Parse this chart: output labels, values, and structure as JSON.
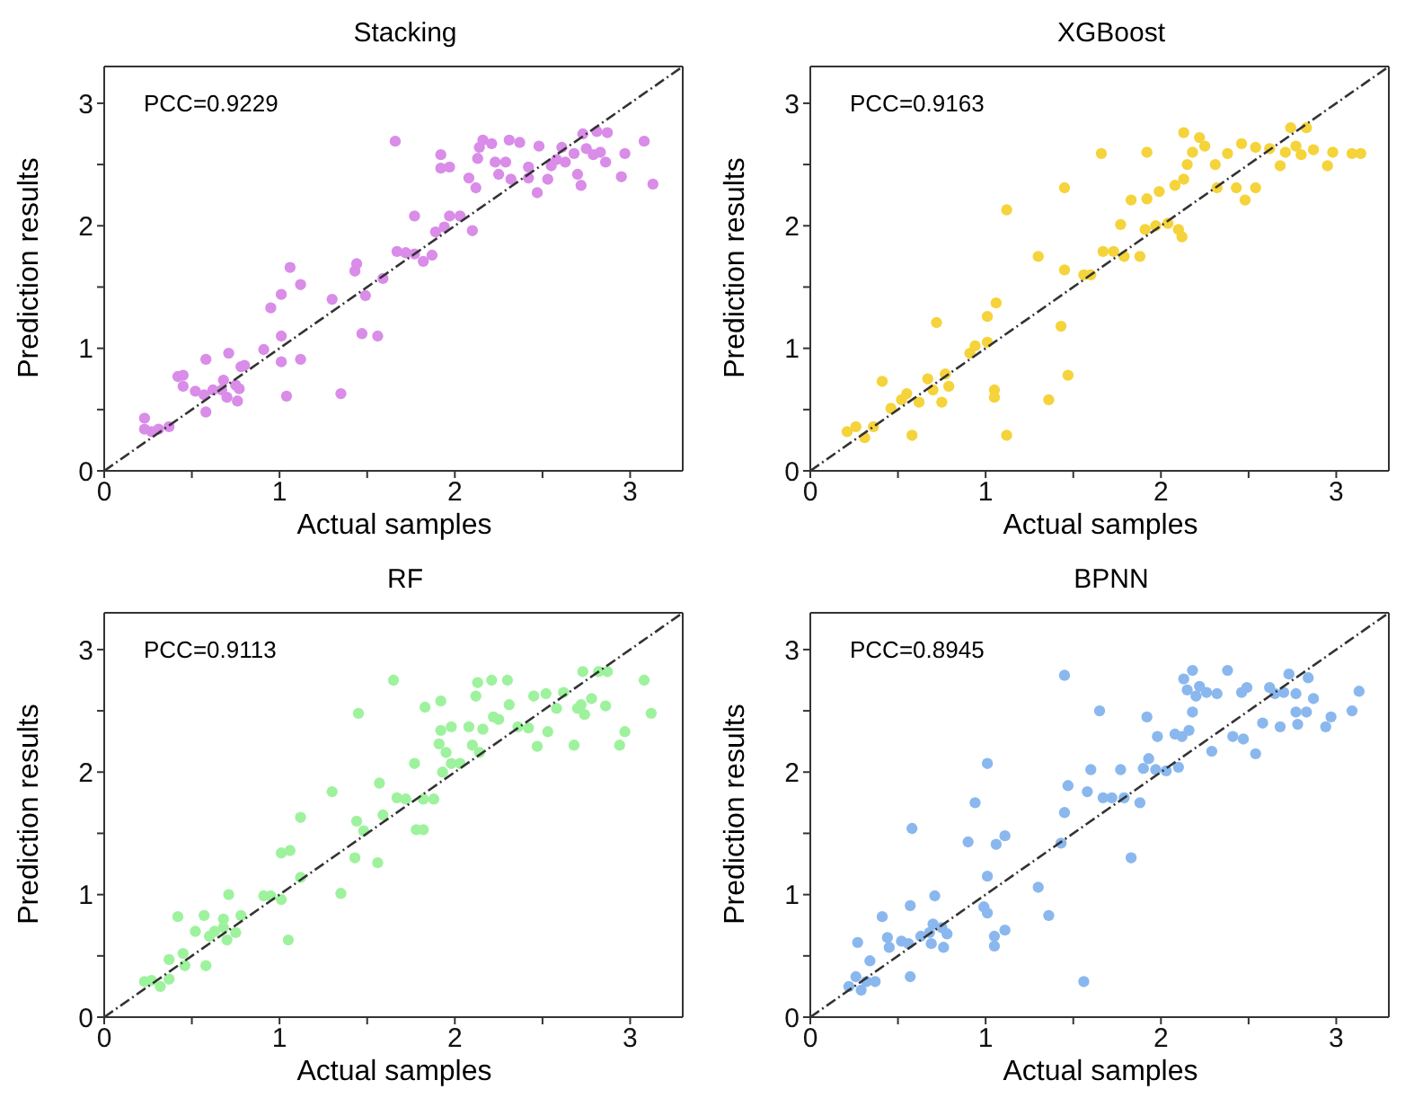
{
  "chart_data": [
    {
      "type": "scatter",
      "title": "Stacking",
      "xlabel": "Actual samples",
      "ylabel": "Prediction results",
      "annotations": [
        "PCC=0.9229"
      ],
      "marker": "circle",
      "xlim": [
        0,
        3.3
      ],
      "ylim": [
        0,
        3.3
      ],
      "xticks": [
        0,
        {
          "value": 0.5,
          "label": null
        },
        1,
        {
          "value": 1.5,
          "label": null
        },
        2,
        {
          "value": 2.5,
          "label": null
        },
        3
      ],
      "yticks": [
        0,
        {
          "value": 0.5,
          "label": null
        },
        1,
        {
          "value": 1.5,
          "label": null
        },
        2,
        {
          "value": 2.5,
          "label": null
        },
        3
      ],
      "series": [
        {
          "color": "#d98ce8",
          "x": [
            0.23,
            0.23,
            0.27,
            0.31,
            0.37,
            0.42,
            0.45,
            0.45,
            0.52,
            0.57,
            0.58,
            0.58,
            0.62,
            0.67,
            0.68,
            0.7,
            0.71,
            0.75,
            0.76,
            0.78,
            0.8,
            0.77,
            0.91,
            0.95,
            1.01,
            1.01,
            1.01,
            1.04,
            1.06,
            1.12,
            1.12,
            1.3,
            1.35,
            1.43,
            1.44,
            1.47,
            1.49,
            1.56,
            1.59,
            1.66,
            1.67,
            1.72,
            1.77,
            1.77,
            1.82,
            1.87,
            1.89,
            1.92,
            1.92,
            1.94,
            1.97,
            1.97,
            2.03,
            2.08,
            2.1,
            2.12,
            2.13,
            2.14,
            2.16,
            2.21,
            2.23,
            2.25,
            2.29,
            2.31,
            2.32,
            2.37,
            2.42,
            2.42,
            2.47,
            2.48,
            2.53,
            2.55,
            2.58,
            2.61,
            2.63,
            2.68,
            2.7,
            2.72,
            2.73,
            2.75,
            2.79,
            2.81,
            2.83,
            2.86,
            2.87,
            2.95,
            2.97,
            3.08,
            3.13
          ],
          "values": [
            0.43,
            0.34,
            0.32,
            0.34,
            0.36,
            0.77,
            0.78,
            0.69,
            0.65,
            0.62,
            0.91,
            0.48,
            0.66,
            0.66,
            0.74,
            0.6,
            0.96,
            0.7,
            0.57,
            0.85,
            0.86,
            0.67,
            0.99,
            1.33,
            1.44,
            1.1,
            0.89,
            0.61,
            1.66,
            1.52,
            0.91,
            1.4,
            0.63,
            1.63,
            1.69,
            1.12,
            1.43,
            1.1,
            1.57,
            2.69,
            1.79,
            1.78,
            2.08,
            1.77,
            1.71,
            1.76,
            1.95,
            2.58,
            2.47,
            1.99,
            2.48,
            2.08,
            2.08,
            2.39,
            1.96,
            2.31,
            2.55,
            2.64,
            2.7,
            2.67,
            2.52,
            2.42,
            2.52,
            2.7,
            2.38,
            2.68,
            2.48,
            2.39,
            2.27,
            2.65,
            2.38,
            2.49,
            2.54,
            2.64,
            2.52,
            2.59,
            2.42,
            2.33,
            2.75,
            2.63,
            2.58,
            2.77,
            2.6,
            2.52,
            2.76,
            2.4,
            2.59,
            2.69,
            2.34
          ]
        },
        {
          "type": "line",
          "color": "#333333",
          "line_style": "dashed",
          "marker": "none",
          "x": [
            0,
            3.3
          ],
          "values": [
            0,
            3.3
          ]
        }
      ]
    },
    {
      "type": "scatter",
      "title": "XGBoost",
      "xlabel": "Actual samples",
      "ylabel": "Prediction results",
      "annotations": [
        "PCC=0.9163"
      ],
      "marker": "circle",
      "xlim": [
        0,
        3.3
      ],
      "ylim": [
        0,
        3.3
      ],
      "xticks": [
        0,
        {
          "value": 0.5,
          "label": null
        },
        1,
        {
          "value": 1.5,
          "label": null
        },
        2,
        {
          "value": 2.5,
          "label": null
        },
        3
      ],
      "yticks": [
        0,
        {
          "value": 0.5,
          "label": null
        },
        1,
        {
          "value": 1.5,
          "label": null
        },
        2,
        {
          "value": 2.5,
          "label": null
        },
        3
      ],
      "series": [
        {
          "color": "#f5d33a",
          "x": [
            0.21,
            0.26,
            0.31,
            0.36,
            0.41,
            0.46,
            0.52,
            0.55,
            0.58,
            0.62,
            0.67,
            0.7,
            0.72,
            0.75,
            0.77,
            0.79,
            0.91,
            0.94,
            1.01,
            1.01,
            1.05,
            1.05,
            1.06,
            1.12,
            1.12,
            1.3,
            1.36,
            1.43,
            1.45,
            1.45,
            1.47,
            1.56,
            1.6,
            1.66,
            1.67,
            1.73,
            1.77,
            1.79,
            1.83,
            1.88,
            1.91,
            1.92,
            1.92,
            1.97,
            1.99,
            2.04,
            2.08,
            2.1,
            2.12,
            2.13,
            2.13,
            2.15,
            2.18,
            2.22,
            2.25,
            2.31,
            2.32,
            2.38,
            2.43,
            2.46,
            2.48,
            2.54,
            2.54,
            2.62,
            2.68,
            2.71,
            2.74,
            2.77,
            2.8,
            2.83,
            2.87,
            2.95,
            2.98,
            3.09,
            3.14
          ],
          "values": [
            0.32,
            0.36,
            0.27,
            0.36,
            0.73,
            0.51,
            0.58,
            0.63,
            0.29,
            0.56,
            0.75,
            0.66,
            1.21,
            0.56,
            0.79,
            0.69,
            0.96,
            1.02,
            1.26,
            1.05,
            0.66,
            0.6,
            1.37,
            2.13,
            0.29,
            1.75,
            0.58,
            1.18,
            1.64,
            2.31,
            0.78,
            1.6,
            1.6,
            2.59,
            1.79,
            1.79,
            2.01,
            1.75,
            2.21,
            1.75,
            1.97,
            2.22,
            2.6,
            2.0,
            2.28,
            2.02,
            2.33,
            1.97,
            1.91,
            2.38,
            2.76,
            2.5,
            2.6,
            2.72,
            2.65,
            2.5,
            2.31,
            2.59,
            2.31,
            2.67,
            2.21,
            2.31,
            2.64,
            2.63,
            2.49,
            2.6,
            2.8,
            2.65,
            2.58,
            2.8,
            2.62,
            2.49,
            2.6,
            2.59,
            2.59
          ]
        },
        {
          "type": "line",
          "color": "#333333",
          "line_style": "dashed",
          "marker": "none",
          "x": [
            0,
            3.3
          ],
          "values": [
            0,
            3.3
          ]
        }
      ]
    },
    {
      "type": "scatter",
      "title": "RF",
      "xlabel": "Actual samples",
      "ylabel": "Prediction results",
      "annotations": [
        "PCC=0.9113"
      ],
      "marker": "circle",
      "xlim": [
        0,
        3.3
      ],
      "ylim": [
        0,
        3.3
      ],
      "xticks": [
        0,
        {
          "value": 0.5,
          "label": null
        },
        1,
        {
          "value": 1.5,
          "label": null
        },
        2,
        {
          "value": 2.5,
          "label": null
        },
        3
      ],
      "yticks": [
        0,
        {
          "value": 0.5,
          "label": null
        },
        1,
        {
          "value": 1.5,
          "label": null
        },
        2,
        {
          "value": 2.5,
          "label": null
        },
        3
      ],
      "series": [
        {
          "color": "#9ef29e",
          "x": [
            0.23,
            0.27,
            0.32,
            0.37,
            0.37,
            0.42,
            0.45,
            0.46,
            0.52,
            0.57,
            0.58,
            0.6,
            0.63,
            0.68,
            0.68,
            0.7,
            0.71,
            0.75,
            0.78,
            0.91,
            0.95,
            1.01,
            1.01,
            1.05,
            1.06,
            1.12,
            1.12,
            1.3,
            1.35,
            1.43,
            1.44,
            1.45,
            1.48,
            1.56,
            1.57,
            1.59,
            1.65,
            1.67,
            1.72,
            1.77,
            1.78,
            1.82,
            1.82,
            1.83,
            1.88,
            1.91,
            1.92,
            1.92,
            1.93,
            1.95,
            1.98,
            1.98,
            2.03,
            2.08,
            2.1,
            2.12,
            2.13,
            2.14,
            2.16,
            2.21,
            2.22,
            2.25,
            2.3,
            2.31,
            2.36,
            2.42,
            2.45,
            2.47,
            2.52,
            2.53,
            2.58,
            2.62,
            2.68,
            2.7,
            2.72,
            2.73,
            2.74,
            2.78,
            2.82,
            2.86,
            2.87,
            2.94,
            2.97,
            3.08,
            3.12
          ],
          "values": [
            0.29,
            0.3,
            0.25,
            0.31,
            0.47,
            0.82,
            0.52,
            0.42,
            0.7,
            0.83,
            0.42,
            0.66,
            0.7,
            0.73,
            0.8,
            0.63,
            1.0,
            0.69,
            0.83,
            0.99,
            0.99,
            1.34,
            0.96,
            0.63,
            1.36,
            1.63,
            1.14,
            1.84,
            1.01,
            1.3,
            1.6,
            2.48,
            1.52,
            1.26,
            1.91,
            1.65,
            2.75,
            1.79,
            1.78,
            2.07,
            1.53,
            1.78,
            1.53,
            2.53,
            1.78,
            2.23,
            2.34,
            2.58,
            2.0,
            2.16,
            2.37,
            2.07,
            2.07,
            2.37,
            2.22,
            2.62,
            2.73,
            2.16,
            2.35,
            2.75,
            2.45,
            2.43,
            2.75,
            2.55,
            2.37,
            2.36,
            2.62,
            2.21,
            2.64,
            2.33,
            2.52,
            2.65,
            2.22,
            2.52,
            2.55,
            2.82,
            2.47,
            2.6,
            2.82,
            2.54,
            2.82,
            2.22,
            2.33,
            2.75,
            2.48
          ]
        },
        {
          "type": "line",
          "color": "#333333",
          "line_style": "dashed",
          "marker": "none",
          "x": [
            0,
            3.3
          ],
          "values": [
            0,
            3.3
          ]
        }
      ]
    },
    {
      "type": "scatter",
      "title": "BPNN",
      "xlabel": "Actual samples",
      "ylabel": "Prediction results",
      "annotations": [
        "PCC=0.8945"
      ],
      "marker": "circle",
      "xlim": [
        0,
        3.3
      ],
      "ylim": [
        0,
        3.3
      ],
      "xticks": [
        0,
        {
          "value": 0.5,
          "label": null
        },
        1,
        {
          "value": 1.5,
          "label": null
        },
        2,
        {
          "value": 2.5,
          "label": null
        },
        3
      ],
      "yticks": [
        0,
        {
          "value": 0.5,
          "label": null
        },
        1,
        {
          "value": 1.5,
          "label": null
        },
        2,
        {
          "value": 2.5,
          "label": null
        },
        3
      ],
      "series": [
        {
          "color": "#8ab8ee",
          "x": [
            0.22,
            0.26,
            0.27,
            0.29,
            0.32,
            0.34,
            0.37,
            0.41,
            0.44,
            0.45,
            0.52,
            0.56,
            0.57,
            0.57,
            0.58,
            0.63,
            0.68,
            0.7,
            0.69,
            0.71,
            0.75,
            0.76,
            0.78,
            0.9,
            0.94,
            0.99,
            1.01,
            1.01,
            1.01,
            1.05,
            1.05,
            1.06,
            1.11,
            1.11,
            1.3,
            1.36,
            1.43,
            1.45,
            1.45,
            1.47,
            1.56,
            1.58,
            1.6,
            1.65,
            1.67,
            1.72,
            1.77,
            1.79,
            1.83,
            1.88,
            1.9,
            1.92,
            1.93,
            1.97,
            1.98,
            2.03,
            2.08,
            2.1,
            2.12,
            2.13,
            2.15,
            2.16,
            2.18,
            2.18,
            2.2,
            2.22,
            2.26,
            2.29,
            2.32,
            2.38,
            2.41,
            2.46,
            2.47,
            2.49,
            2.54,
            2.58,
            2.62,
            2.65,
            2.68,
            2.7,
            2.73,
            2.77,
            2.77,
            2.78,
            2.83,
            2.84,
            2.87,
            2.94,
            2.97,
            3.09,
            3.13
          ],
          "values": [
            0.25,
            0.33,
            0.61,
            0.22,
            0.29,
            0.46,
            0.29,
            0.82,
            0.65,
            0.57,
            0.62,
            0.6,
            0.91,
            0.33,
            1.54,
            0.66,
            0.69,
            0.76,
            0.6,
            0.99,
            0.73,
            0.57,
            0.68,
            1.43,
            1.75,
            0.9,
            2.07,
            1.15,
            0.85,
            0.66,
            0.58,
            1.41,
            1.48,
            0.71,
            1.06,
            0.83,
            1.42,
            1.67,
            2.79,
            1.89,
            0.29,
            1.84,
            2.02,
            2.5,
            1.79,
            1.79,
            2.02,
            1.79,
            1.3,
            1.75,
            2.03,
            2.45,
            2.11,
            2.02,
            2.29,
            2.01,
            2.31,
            2.04,
            2.29,
            2.76,
            2.67,
            2.34,
            2.49,
            2.83,
            2.62,
            2.7,
            2.65,
            2.17,
            2.64,
            2.83,
            2.29,
            2.65,
            2.27,
            2.69,
            2.15,
            2.4,
            2.69,
            2.64,
            2.37,
            2.65,
            2.8,
            2.64,
            2.49,
            2.39,
            2.49,
            2.77,
            2.6,
            2.37,
            2.45,
            2.5,
            2.66
          ]
        },
        {
          "type": "line",
          "color": "#333333",
          "line_style": "dashed",
          "marker": "none",
          "x": [
            0,
            3.3
          ],
          "values": [
            0,
            3.3
          ]
        }
      ]
    }
  ]
}
